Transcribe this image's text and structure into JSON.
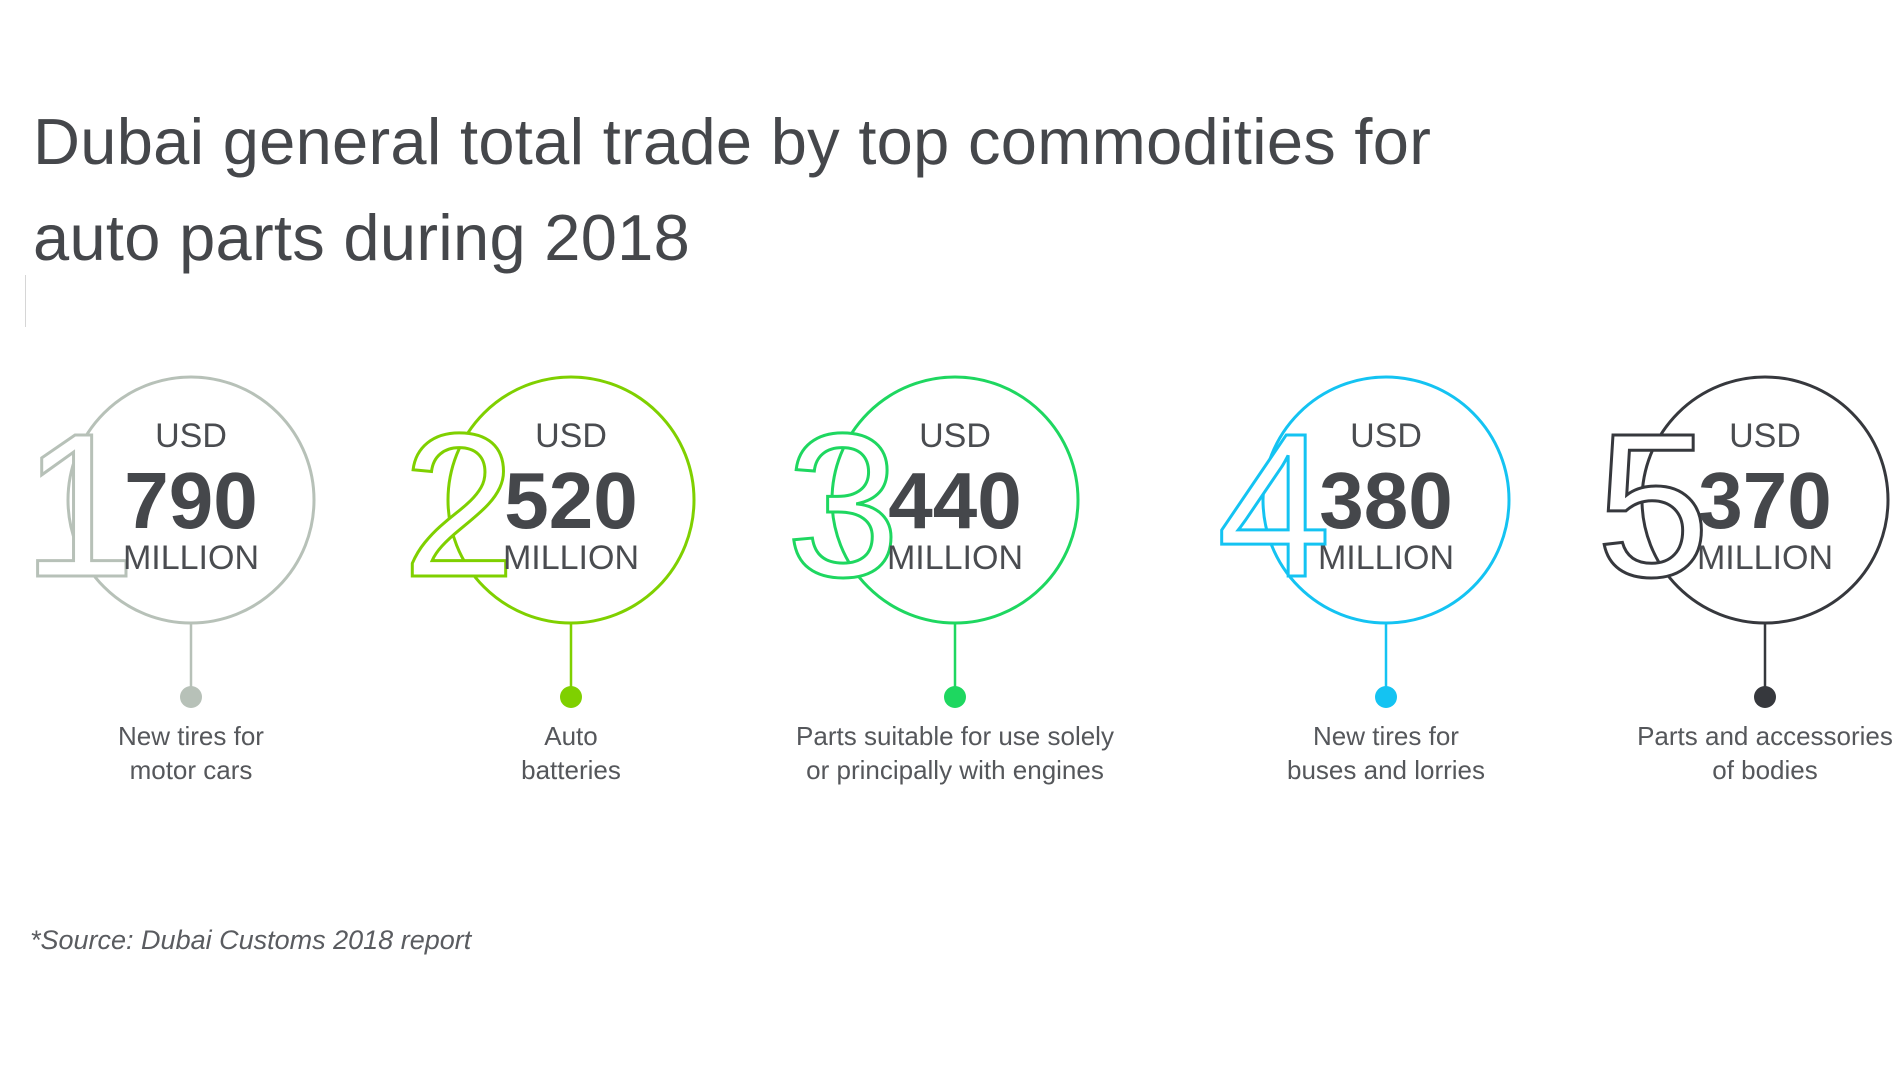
{
  "title_lines": [
    "Dubai general total trade by top commodities for",
    "auto parts during 2018"
  ],
  "source": "*Source: Dubai Customs 2018 report",
  "chart_data": {
    "type": "ranked-infographic",
    "title": "Dubai general total trade by top commodities for auto parts during 2018",
    "currency": "USD",
    "unit": "MILLION",
    "items": [
      {
        "rank": "1",
        "value": 790,
        "label_lines": [
          "New tires for",
          "motor cars"
        ],
        "color": "#b7c1b8"
      },
      {
        "rank": "2",
        "value": 520,
        "label_lines": [
          "Auto",
          "batteries"
        ],
        "color": "#7fd000"
      },
      {
        "rank": "3",
        "value": 440,
        "label_lines": [
          "Parts suitable for use solely",
          "or principally with engines"
        ],
        "color": "#1ed760"
      },
      {
        "rank": "4",
        "value": 380,
        "label_lines": [
          "New tires for",
          "buses and lorries"
        ],
        "color": "#14c3f2"
      },
      {
        "rank": "5",
        "value": 370,
        "label_lines": [
          "Parts and accessories",
          "of bodies"
        ],
        "color": "#36383d"
      }
    ]
  }
}
